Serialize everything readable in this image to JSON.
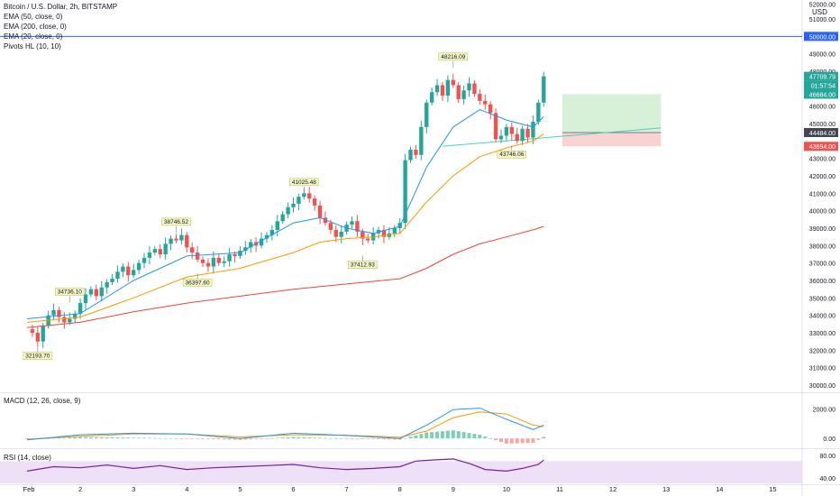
{
  "title": "Bitcoin / U.S. Dollar, 2h, BITSTAMP",
  "currency": "USD",
  "indicator_labels": [
    "EMA (50, close, 0)",
    "EMA (200, close, 0)",
    "EMA (20, close, 0)",
    "Pivots HL (10, 10)"
  ],
  "macd_label": "MACD (12, 26, close, 9)",
  "rsi_label": "RSI (14, close)",
  "colors": {
    "up": "#26a69a",
    "down": "#ef5350",
    "ema20": "#2196f3",
    "ema50": "#ff9800",
    "ema200": "#f44336",
    "horizontal_line": "#2962ff",
    "trendline": "#4dd0b8",
    "target_zone": "#d7f0d8",
    "stop_zone": "#f9d2d2",
    "rsi": "#7b1fa2",
    "rsi_band": "#ede0f7",
    "macd_line": "#2196f3",
    "signal_line": "#ff9800"
  },
  "chart_data": {
    "type": "candlestick",
    "price_axis": {
      "range": [
        30000,
        52000
      ],
      "ticks": [
        "51000.00",
        "49000.00",
        "48000.00",
        "47000.00",
        "46000.00",
        "45000.00",
        "43000.00",
        "42000.00",
        "41000.00",
        "40000.00",
        "39000.00",
        "38000.00",
        "37000.00",
        "36000.00",
        "35000.00",
        "34000.00",
        "33000.00",
        "32000.00",
        "31000.00",
        "30000.00"
      ],
      "top_tick_partial": "52000.00"
    },
    "time_axis": {
      "labels": [
        "Feb",
        "2",
        "3",
        "4",
        "5",
        "6",
        "7",
        "8",
        "9",
        "10",
        "11",
        "12",
        "13",
        "14",
        "15"
      ],
      "positions_days": [
        1,
        2,
        3,
        4,
        5,
        6,
        7,
        8,
        9,
        10,
        11,
        12,
        13,
        14,
        15
      ]
    },
    "ohlc_close_path": [
      [
        1.0,
        33200
      ],
      [
        1.1,
        33000
      ],
      [
        1.2,
        32500
      ],
      [
        1.3,
        33400
      ],
      [
        1.4,
        34000
      ],
      [
        1.5,
        34300
      ],
      [
        1.6,
        33900
      ],
      [
        1.7,
        33600
      ],
      [
        1.8,
        33800
      ],
      [
        1.9,
        34100
      ],
      [
        2.0,
        34700
      ],
      [
        2.1,
        35200
      ],
      [
        2.2,
        35500
      ],
      [
        2.3,
        35100
      ],
      [
        2.4,
        35600
      ],
      [
        2.5,
        35900
      ],
      [
        2.6,
        36100
      ],
      [
        2.7,
        36500
      ],
      [
        2.8,
        36800
      ],
      [
        2.9,
        36300
      ],
      [
        3.0,
        36600
      ],
      [
        3.1,
        37000
      ],
      [
        3.2,
        37300
      ],
      [
        3.3,
        37600
      ],
      [
        3.4,
        37800
      ],
      [
        3.5,
        37500
      ],
      [
        3.6,
        38100
      ],
      [
        3.7,
        38400
      ],
      [
        3.8,
        38300
      ],
      [
        3.9,
        38600
      ],
      [
        4.0,
        37900
      ],
      [
        4.1,
        37600
      ],
      [
        4.2,
        37200
      ],
      [
        4.3,
        37000
      ],
      [
        4.4,
        36800
      ],
      [
        4.5,
        37300
      ],
      [
        4.6,
        37000
      ],
      [
        4.7,
        37100
      ],
      [
        4.8,
        37500
      ],
      [
        4.9,
        37400
      ],
      [
        5.0,
        37700
      ],
      [
        5.1,
        37900
      ],
      [
        5.2,
        38200
      ],
      [
        5.3,
        38000
      ],
      [
        5.4,
        38400
      ],
      [
        5.5,
        38600
      ],
      [
        5.6,
        38900
      ],
      [
        5.7,
        39400
      ],
      [
        5.8,
        39800
      ],
      [
        5.9,
        40200
      ],
      [
        6.0,
        40400
      ],
      [
        6.1,
        40800
      ],
      [
        6.2,
        41000
      ],
      [
        6.3,
        40700
      ],
      [
        6.4,
        40300
      ],
      [
        6.5,
        39600
      ],
      [
        6.6,
        39300
      ],
      [
        6.7,
        38900
      ],
      [
        6.8,
        38500
      ],
      [
        6.9,
        38800
      ],
      [
        7.0,
        39200
      ],
      [
        7.1,
        39400
      ],
      [
        7.2,
        38800
      ],
      [
        7.3,
        38400
      ],
      [
        7.4,
        38300
      ],
      [
        7.5,
        38700
      ],
      [
        7.6,
        38900
      ],
      [
        7.7,
        38500
      ],
      [
        7.8,
        38700
      ],
      [
        7.9,
        39000
      ],
      [
        8.0,
        39300
      ],
      [
        8.1,
        42900
      ],
      [
        8.2,
        43500
      ],
      [
        8.3,
        43200
      ],
      [
        8.4,
        44800
      ],
      [
        8.5,
        46200
      ],
      [
        8.6,
        46800
      ],
      [
        8.7,
        47200
      ],
      [
        8.8,
        46600
      ],
      [
        8.9,
        47500
      ],
      [
        9.0,
        47200
      ],
      [
        9.1,
        46400
      ],
      [
        9.2,
        46900
      ],
      [
        9.3,
        47300
      ],
      [
        9.4,
        46700
      ],
      [
        9.5,
        46300
      ],
      [
        9.6,
        46100
      ],
      [
        9.7,
        45600
      ],
      [
        9.8,
        44100
      ],
      [
        9.9,
        44300
      ],
      [
        10.0,
        44800
      ],
      [
        10.1,
        44400
      ],
      [
        10.2,
        44000
      ],
      [
        10.3,
        44700
      ],
      [
        10.4,
        44200
      ],
      [
        10.5,
        45100
      ],
      [
        10.6,
        46200
      ],
      [
        10.7,
        47710
      ]
    ],
    "ema20": [
      [
        1.0,
        33800
      ],
      [
        2.0,
        34100
      ],
      [
        3.0,
        36000
      ],
      [
        4.0,
        37400
      ],
      [
        5.0,
        37600
      ],
      [
        6.0,
        39300
      ],
      [
        6.5,
        39600
      ],
      [
        7.0,
        39000
      ],
      [
        7.5,
        38700
      ],
      [
        8.0,
        39100
      ],
      [
        8.5,
        42500
      ],
      [
        9.0,
        44800
      ],
      [
        9.5,
        45800
      ],
      [
        10.0,
        45200
      ],
      [
        10.5,
        44800
      ],
      [
        10.7,
        45400
      ]
    ],
    "ema50": [
      [
        1.0,
        33600
      ],
      [
        2.0,
        33900
      ],
      [
        3.0,
        35000
      ],
      [
        4.0,
        36200
      ],
      [
        5.0,
        36700
      ],
      [
        6.0,
        37600
      ],
      [
        6.5,
        38200
      ],
      [
        7.0,
        38400
      ],
      [
        7.5,
        38500
      ],
      [
        8.0,
        38700
      ],
      [
        8.5,
        40500
      ],
      [
        9.0,
        42000
      ],
      [
        9.5,
        43100
      ],
      [
        10.0,
        43600
      ],
      [
        10.5,
        44000
      ],
      [
        10.7,
        44400
      ]
    ],
    "ema200": [
      [
        1.0,
        33300
      ],
      [
        2.0,
        33600
      ],
      [
        3.0,
        34200
      ],
      [
        4.0,
        34700
      ],
      [
        5.0,
        35100
      ],
      [
        6.0,
        35500
      ],
      [
        7.0,
        35800
      ],
      [
        8.0,
        36100
      ],
      [
        8.5,
        36700
      ],
      [
        9.0,
        37500
      ],
      [
        9.5,
        38100
      ],
      [
        10.0,
        38500
      ],
      [
        10.5,
        38900
      ],
      [
        10.7,
        39100
      ]
    ],
    "pivots": [
      {
        "label": "32193.70",
        "day": 1.2,
        "price": 32193.7,
        "kind": "low"
      },
      {
        "label": "34736.10",
        "day": 1.8,
        "price": 34736.1,
        "kind": "high"
      },
      {
        "label": "38746.52",
        "day": 3.8,
        "price": 38746.52,
        "kind": "high"
      },
      {
        "label": "36397.60",
        "day": 4.2,
        "price": 36397.6,
        "kind": "low"
      },
      {
        "label": "41025.48",
        "day": 6.2,
        "price": 41025.48,
        "kind": "high"
      },
      {
        "label": "37412.93",
        "day": 7.3,
        "price": 37412.93,
        "kind": "low"
      },
      {
        "label": "48216.09",
        "day": 9.0,
        "price": 48216.09,
        "kind": "high"
      },
      {
        "label": "43746.06",
        "day": 10.1,
        "price": 43746.06,
        "kind": "low"
      }
    ],
    "horizontal_line": {
      "price": 50000.0,
      "label": "50000.00"
    },
    "trendline": {
      "from": [
        8.8,
        43700
      ],
      "to": [
        12.9,
        44750
      ]
    },
    "position": {
      "entry": 44484.0,
      "target": 46684.0,
      "stop": 43694.0,
      "from_day": 11.05,
      "to_day": 12.9
    },
    "price_labels": [
      {
        "text": "47709.79",
        "price": 47709.79,
        "role": "last"
      },
      {
        "text": "01:57:54",
        "price": 47360.0,
        "role": "countdown"
      },
      {
        "text": "46684.00",
        "price": 46684.0,
        "role": "target"
      },
      {
        "text": "44484.00",
        "price": 44484.0,
        "role": "entry"
      },
      {
        "text": "43694.00",
        "price": 43694.0,
        "role": "stop"
      }
    ],
    "macd": {
      "axis_ticks": [
        "2000.00",
        "0.00"
      ],
      "range": [
        -600,
        3000
      ],
      "macd_line": [
        [
          1.0,
          -100
        ],
        [
          2.0,
          250
        ],
        [
          3.0,
          350
        ],
        [
          4.0,
          300
        ],
        [
          5.0,
          0
        ],
        [
          6.0,
          350
        ],
        [
          7.0,
          200
        ],
        [
          8.0,
          0
        ],
        [
          8.5,
          900
        ],
        [
          9.0,
          1950
        ],
        [
          9.5,
          2050
        ],
        [
          10.0,
          1300
        ],
        [
          10.5,
          600
        ],
        [
          10.7,
          900
        ]
      ],
      "signal_line": [
        [
          1.0,
          -50
        ],
        [
          2.0,
          150
        ],
        [
          3.0,
          300
        ],
        [
          4.0,
          300
        ],
        [
          5.0,
          100
        ],
        [
          6.0,
          250
        ],
        [
          7.0,
          220
        ],
        [
          8.0,
          80
        ],
        [
          8.5,
          500
        ],
        [
          9.0,
          1400
        ],
        [
          9.5,
          1800
        ],
        [
          10.0,
          1650
        ],
        [
          10.5,
          900
        ],
        [
          10.7,
          800
        ]
      ]
    },
    "rsi": {
      "axis_ticks": [
        "80.00",
        "40.00"
      ],
      "range": [
        30,
        90
      ],
      "band": [
        30,
        70
      ],
      "values": [
        [
          1.0,
          52
        ],
        [
          1.5,
          60
        ],
        [
          2.0,
          58
        ],
        [
          2.5,
          63
        ],
        [
          3.0,
          57
        ],
        [
          3.5,
          62
        ],
        [
          4.0,
          55
        ],
        [
          4.5,
          58
        ],
        [
          5.0,
          60
        ],
        [
          5.5,
          62
        ],
        [
          6.0,
          64
        ],
        [
          6.5,
          58
        ],
        [
          7.0,
          55
        ],
        [
          7.5,
          57
        ],
        [
          8.0,
          60
        ],
        [
          8.3,
          70
        ],
        [
          8.6,
          72
        ],
        [
          9.0,
          74
        ],
        [
          9.3,
          66
        ],
        [
          9.6,
          55
        ],
        [
          10.0,
          52
        ],
        [
          10.3,
          57
        ],
        [
          10.6,
          64
        ],
        [
          10.7,
          72
        ]
      ]
    }
  }
}
